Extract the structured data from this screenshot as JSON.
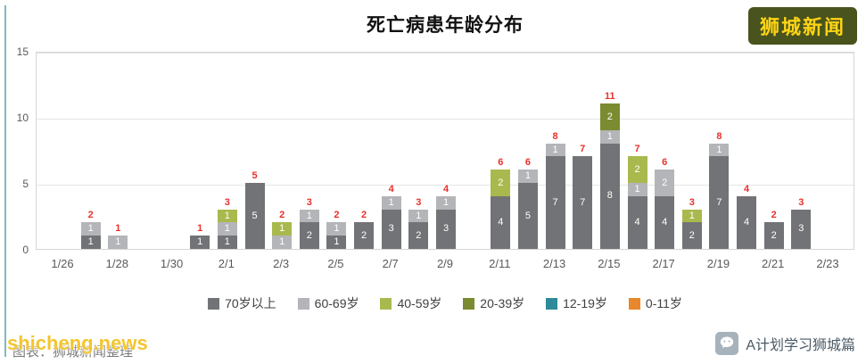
{
  "banner": {
    "label": "狮城新闻"
  },
  "watermark": {
    "brand": "shicheng.news",
    "credit": "图表：狮城新闻整理"
  },
  "footer": {
    "account": "A计划学习狮城篇"
  },
  "chart_data": {
    "type": "bar",
    "stacked": true,
    "title": "死亡病患年龄分布",
    "xlabel": "",
    "ylabel": "",
    "ylim": [
      0,
      15
    ],
    "yticks": [
      0,
      5,
      10,
      15
    ],
    "grid": true,
    "legend_position": "bottom",
    "total_label_color": "#e8312a",
    "x_span": 28,
    "x_ticks": [
      {
        "label": "1/26",
        "offset": 0
      },
      {
        "label": "1/28",
        "offset": 2
      },
      {
        "label": "1/30",
        "offset": 4
      },
      {
        "label": "2/1",
        "offset": 6
      },
      {
        "label": "2/3",
        "offset": 8
      },
      {
        "label": "2/5",
        "offset": 10
      },
      {
        "label": "2/7",
        "offset": 12
      },
      {
        "label": "2/9",
        "offset": 14
      },
      {
        "label": "2/11",
        "offset": 16
      },
      {
        "label": "2/13",
        "offset": 18
      },
      {
        "label": "2/15",
        "offset": 20
      },
      {
        "label": "2/17",
        "offset": 22
      },
      {
        "label": "2/19",
        "offset": 24
      },
      {
        "label": "2/21",
        "offset": 26
      },
      {
        "label": "2/23",
        "offset": 28
      }
    ],
    "groups": [
      {
        "id": "g70",
        "label": "70岁以上",
        "color": "#727376"
      },
      {
        "id": "g60",
        "label": "60-69岁",
        "color": "#b3b5b8"
      },
      {
        "id": "g40",
        "label": "40-59岁",
        "color": "#aab94e"
      },
      {
        "id": "g20",
        "label": "20-39岁",
        "color": "#7b8b31"
      },
      {
        "id": "g12",
        "label": "12-19岁",
        "color": "#2f8a99"
      },
      {
        "id": "g0",
        "label": "0-11岁",
        "color": "#e8872b"
      }
    ],
    "bars": [
      {
        "date": "1/27",
        "offset": 1,
        "total": 2,
        "segments": [
          {
            "group": "g70",
            "value": 1
          },
          {
            "group": "g60",
            "value": 1
          }
        ]
      },
      {
        "date": "1/28",
        "offset": 2,
        "total": 1,
        "segments": [
          {
            "group": "g60",
            "value": 1
          }
        ]
      },
      {
        "date": "1/31",
        "offset": 5,
        "total": 1,
        "segments": [
          {
            "group": "g70",
            "value": 1
          }
        ]
      },
      {
        "date": "2/1",
        "offset": 6,
        "total": 3,
        "segments": [
          {
            "group": "g70",
            "value": 1
          },
          {
            "group": "g60",
            "value": 1
          },
          {
            "group": "g40",
            "value": 1
          }
        ]
      },
      {
        "date": "2/2",
        "offset": 7,
        "total": 5,
        "segments": [
          {
            "group": "g70",
            "value": 5
          }
        ]
      },
      {
        "date": "2/3",
        "offset": 8,
        "total": 2,
        "segments": [
          {
            "group": "g60",
            "value": 1
          },
          {
            "group": "g40",
            "value": 1
          }
        ]
      },
      {
        "date": "2/4",
        "offset": 9,
        "total": 3,
        "segments": [
          {
            "group": "g70",
            "value": 2
          },
          {
            "group": "g60",
            "value": 1
          }
        ]
      },
      {
        "date": "2/5",
        "offset": 10,
        "total": 2,
        "segments": [
          {
            "group": "g70",
            "value": 1
          },
          {
            "group": "g60",
            "value": 1
          }
        ]
      },
      {
        "date": "2/6",
        "offset": 11,
        "total": 2,
        "segments": [
          {
            "group": "g70",
            "value": 2
          }
        ]
      },
      {
        "date": "2/7",
        "offset": 12,
        "total": 4,
        "segments": [
          {
            "group": "g70",
            "value": 3
          },
          {
            "group": "g60",
            "value": 1
          }
        ]
      },
      {
        "date": "2/8",
        "offset": 13,
        "total": 3,
        "segments": [
          {
            "group": "g70",
            "value": 2
          },
          {
            "group": "g60",
            "value": 1
          }
        ]
      },
      {
        "date": "2/9",
        "offset": 14,
        "total": 4,
        "segments": [
          {
            "group": "g70",
            "value": 3
          },
          {
            "group": "g60",
            "value": 1
          }
        ]
      },
      {
        "date": "2/11",
        "offset": 16,
        "total": 6,
        "segments": [
          {
            "group": "g70",
            "value": 4
          },
          {
            "group": "g40",
            "value": 2
          }
        ]
      },
      {
        "date": "2/12",
        "offset": 17,
        "total": 6,
        "segments": [
          {
            "group": "g70",
            "value": 5
          },
          {
            "group": "g60",
            "value": 1
          }
        ]
      },
      {
        "date": "2/13",
        "offset": 18,
        "total": 8,
        "segments": [
          {
            "group": "g70",
            "value": 7
          },
          {
            "group": "g60",
            "value": 1
          }
        ]
      },
      {
        "date": "2/14",
        "offset": 19,
        "total": 7,
        "segments": [
          {
            "group": "g70",
            "value": 7
          }
        ]
      },
      {
        "date": "2/15",
        "offset": 20,
        "total": 11,
        "segments": [
          {
            "group": "g70",
            "value": 8
          },
          {
            "group": "g60",
            "value": 1
          },
          {
            "group": "g20",
            "value": 2
          }
        ]
      },
      {
        "date": "2/16",
        "offset": 21,
        "total": 7,
        "segments": [
          {
            "group": "g70",
            "value": 4
          },
          {
            "group": "g60",
            "value": 1
          },
          {
            "group": "g40",
            "value": 2
          }
        ]
      },
      {
        "date": "2/17",
        "offset": 22,
        "total": 6,
        "segments": [
          {
            "group": "g70",
            "value": 4
          },
          {
            "group": "g60",
            "value": 2
          }
        ]
      },
      {
        "date": "2/18",
        "offset": 23,
        "total": 3,
        "segments": [
          {
            "group": "g70",
            "value": 2
          },
          {
            "group": "g40",
            "value": 1
          }
        ]
      },
      {
        "date": "2/19",
        "offset": 24,
        "total": 8,
        "segments": [
          {
            "group": "g70",
            "value": 7
          },
          {
            "group": "g60",
            "value": 1
          }
        ]
      },
      {
        "date": "2/20",
        "offset": 25,
        "total": 4,
        "segments": [
          {
            "group": "g70",
            "value": 4
          }
        ]
      },
      {
        "date": "2/21",
        "offset": 26,
        "total": 2,
        "segments": [
          {
            "group": "g70",
            "value": 2
          }
        ]
      },
      {
        "date": "2/22",
        "offset": 27,
        "total": 3,
        "segments": [
          {
            "group": "g70",
            "value": 3
          }
        ]
      }
    ]
  }
}
